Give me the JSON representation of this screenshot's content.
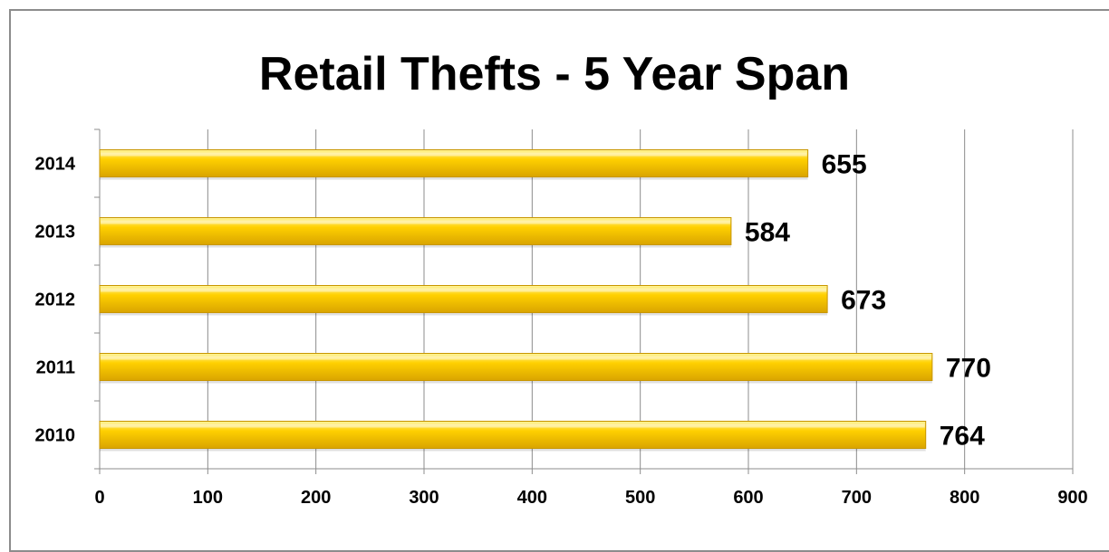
{
  "chart_data": {
    "type": "bar",
    "orientation": "horizontal",
    "title": "Retail Thefts - 5 Year Span",
    "categories": [
      "2014",
      "2013",
      "2012",
      "2011",
      "2010"
    ],
    "values": [
      655,
      584,
      673,
      770,
      764
    ],
    "xlim": [
      0,
      900
    ],
    "xticks": [
      0,
      100,
      200,
      300,
      400,
      500,
      600,
      700,
      800,
      900
    ],
    "grid": true,
    "legend": "none",
    "colors": {
      "bar_top": "#fff6a0",
      "bar_mid": "#ffd000",
      "bar_bottom": "#d9a400",
      "bar_edge": "#c89600",
      "grid": "#8c8c8c"
    }
  }
}
